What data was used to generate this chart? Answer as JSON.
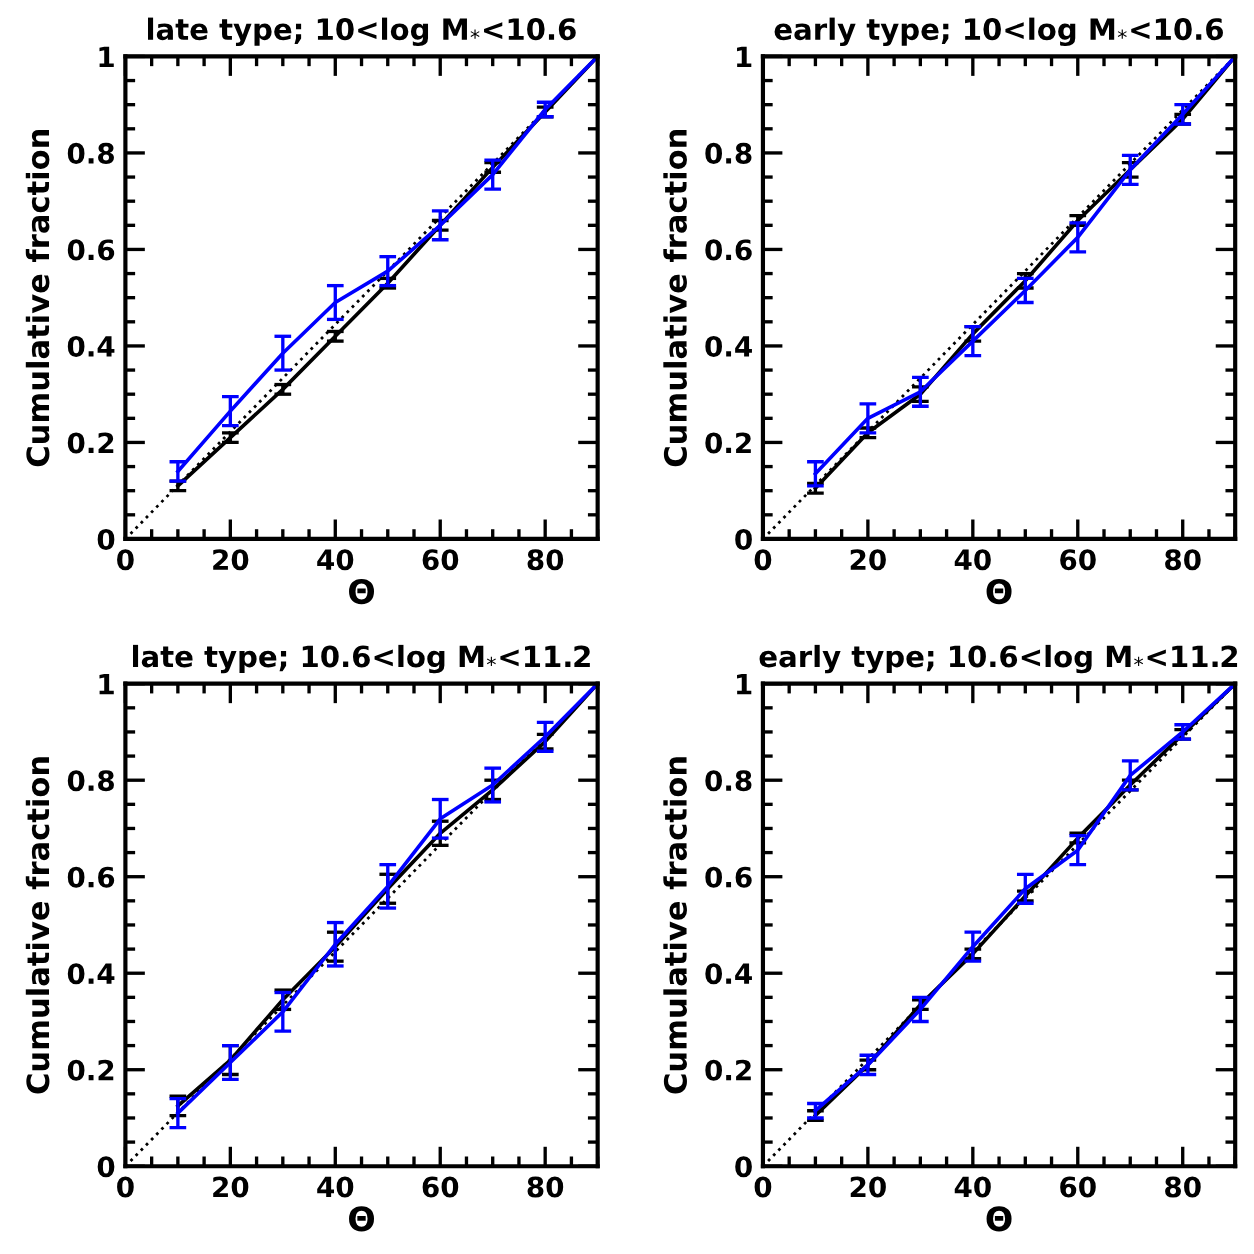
{
  "chart_data": [
    {
      "type": "line",
      "title": "late type; 10<log M$_{*}$<10.6",
      "xlabel": "Θ",
      "ylabel": "Cumulative fraction",
      "xlim": [
        0,
        90
      ],
      "ylim": [
        0,
        1
      ],
      "xticks": [
        0,
        20,
        40,
        60,
        80
      ],
      "yticks": [
        0,
        0.2,
        0.4,
        0.6,
        0.8,
        1
      ],
      "series": [
        {
          "color": "#000000",
          "line_style": "dotted",
          "x": [
            0,
            90
          ],
          "values": [
            0,
            1
          ]
        },
        {
          "color": "#000000",
          "line_style": "solid",
          "x": [
            10,
            20,
            30,
            40,
            50,
            60,
            70,
            80,
            90
          ],
          "values": [
            0.11,
            0.21,
            0.31,
            0.42,
            0.53,
            0.65,
            0.77,
            0.885,
            1
          ],
          "errors": [
            0.01,
            0.01,
            0.01,
            0.01,
            0.01,
            0.01,
            0.01,
            0.01,
            null
          ]
        },
        {
          "color": "#0000ff",
          "line_style": "solid",
          "x": [
            10,
            20,
            30,
            40,
            50,
            60,
            70,
            80,
            90
          ],
          "values": [
            0.14,
            0.265,
            0.385,
            0.49,
            0.555,
            0.65,
            0.755,
            0.89,
            1
          ],
          "errors": [
            0.02,
            0.03,
            0.035,
            0.035,
            0.03,
            0.03,
            0.03,
            0.015,
            null
          ]
        }
      ]
    },
    {
      "type": "line",
      "title": "early type; 10<log M$_{*}$<10.6",
      "xlabel": "Θ",
      "ylabel": "Cumulative fraction",
      "xlim": [
        0,
        90
      ],
      "ylim": [
        0,
        1
      ],
      "xticks": [
        0,
        20,
        40,
        60,
        80
      ],
      "yticks": [
        0,
        0.2,
        0.4,
        0.6,
        0.8,
        1
      ],
      "series": [
        {
          "color": "#000000",
          "line_style": "dotted",
          "x": [
            0,
            90
          ],
          "values": [
            0,
            1
          ]
        },
        {
          "color": "#000000",
          "line_style": "solid",
          "x": [
            10,
            20,
            30,
            40,
            50,
            60,
            70,
            80,
            90
          ],
          "values": [
            0.105,
            0.22,
            0.3,
            0.425,
            0.535,
            0.66,
            0.765,
            0.87,
            1
          ],
          "errors": [
            0.01,
            0.01,
            0.015,
            0.015,
            0.015,
            0.01,
            0.015,
            0.01,
            null
          ]
        },
        {
          "color": "#0000ff",
          "line_style": "solid",
          "x": [
            10,
            20,
            30,
            40,
            50,
            60,
            70,
            80,
            90
          ],
          "values": [
            0.135,
            0.25,
            0.305,
            0.41,
            0.515,
            0.625,
            0.765,
            0.88,
            1
          ],
          "errors": [
            0.025,
            0.03,
            0.03,
            0.03,
            0.025,
            0.03,
            0.03,
            0.02,
            null
          ]
        }
      ]
    },
    {
      "type": "line",
      "title": "late type; 10.6<log M$_{*}$<11.2",
      "xlabel": "Θ",
      "ylabel": "Cumulative fraction",
      "xlim": [
        0,
        90
      ],
      "ylim": [
        0,
        1
      ],
      "xticks": [
        0,
        20,
        40,
        60,
        80
      ],
      "yticks": [
        0,
        0.2,
        0.4,
        0.6,
        0.8,
        1
      ],
      "series": [
        {
          "color": "#000000",
          "line_style": "dotted",
          "x": [
            0,
            90
          ],
          "values": [
            0,
            1
          ]
        },
        {
          "color": "#000000",
          "line_style": "solid",
          "x": [
            10,
            20,
            30,
            40,
            50,
            60,
            70,
            80,
            90
          ],
          "values": [
            0.125,
            0.22,
            0.345,
            0.455,
            0.575,
            0.69,
            0.78,
            0.88,
            1
          ],
          "errors": [
            0.02,
            0.03,
            0.02,
            0.03,
            0.03,
            0.025,
            0.02,
            0.015,
            null
          ]
        },
        {
          "color": "#0000ff",
          "line_style": "solid",
          "x": [
            10,
            20,
            30,
            40,
            50,
            60,
            70,
            80,
            90
          ],
          "values": [
            0.11,
            0.215,
            0.32,
            0.46,
            0.58,
            0.72,
            0.79,
            0.89,
            1
          ],
          "errors": [
            0.03,
            0.035,
            0.04,
            0.045,
            0.045,
            0.04,
            0.035,
            0.03,
            null
          ]
        }
      ]
    },
    {
      "type": "line",
      "title": "early type; 10.6<log M$_{*}$<11.2",
      "xlabel": "Θ",
      "ylabel": "Cumulative fraction",
      "xlim": [
        0,
        90
      ],
      "ylim": [
        0,
        1
      ],
      "xticks": [
        0,
        20,
        40,
        60,
        80
      ],
      "yticks": [
        0,
        0.2,
        0.4,
        0.6,
        0.8,
        1
      ],
      "series": [
        {
          "color": "#000000",
          "line_style": "dotted",
          "x": [
            0,
            90
          ],
          "values": [
            0,
            1
          ]
        },
        {
          "color": "#000000",
          "line_style": "solid",
          "x": [
            10,
            20,
            30,
            40,
            50,
            60,
            70,
            80,
            90
          ],
          "values": [
            0.105,
            0.21,
            0.335,
            0.44,
            0.56,
            0.68,
            0.79,
            0.895,
            1
          ],
          "errors": [
            0.01,
            0.01,
            0.01,
            0.01,
            0.01,
            0.01,
            0.01,
            0.01,
            null
          ]
        },
        {
          "color": "#0000ff",
          "line_style": "solid",
          "x": [
            10,
            20,
            30,
            40,
            50,
            60,
            70,
            80,
            90
          ],
          "values": [
            0.115,
            0.21,
            0.325,
            0.455,
            0.575,
            0.655,
            0.81,
            0.9,
            1
          ],
          "errors": [
            0.015,
            0.02,
            0.025,
            0.03,
            0.03,
            0.03,
            0.03,
            0.015,
            null
          ]
        }
      ]
    }
  ]
}
